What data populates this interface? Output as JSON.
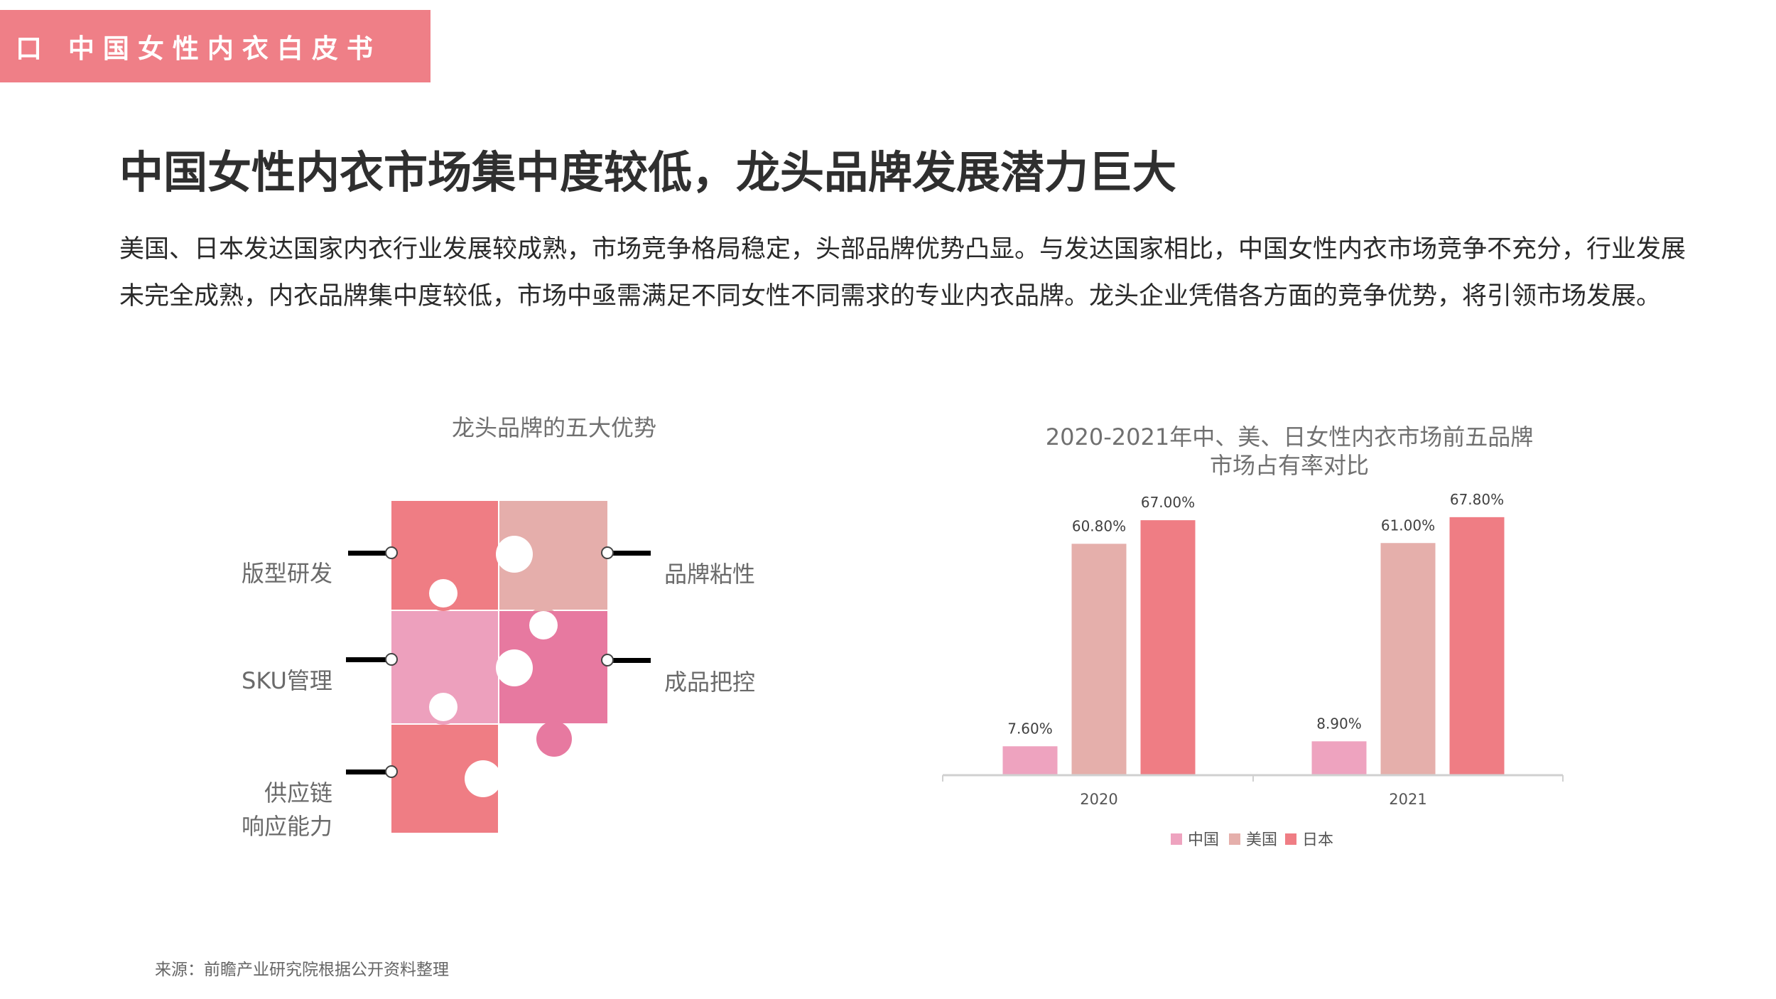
{
  "header": {
    "tab_label": "口 中国女性内衣白皮书"
  },
  "page": {
    "title": "中国女性内衣市场集中度较低，龙头品牌发展潜力巨大",
    "intro": "美国、日本发达国家内衣行业发展较成熟，市场竞争格局稳定，头部品牌优势凸显。与发达国家相比，中国女性内衣市场竞争不充分，行业发展未完全成熟，内衣品牌集中度较低，市场中亟需满足不同女性不同需求的专业内衣品牌。龙头企业凭借各方面的竞争优势，将引领市场发展。"
  },
  "puzzle": {
    "title": "龙头品牌的五大优势",
    "labels": {
      "left_1": "版型研发",
      "left_2": "SKU管理",
      "left_3_line1": "供应链",
      "left_3_line2": "响应能力",
      "right_1": "品牌粘性",
      "right_2": "成品把控"
    },
    "colors": {
      "piece_top_left": "#ef7d84",
      "piece_top_right": "#e5aeab",
      "piece_mid_left": "#eda0bd",
      "piece_mid_right": "#e779a0",
      "piece_bottom_left": "#ef7d84"
    }
  },
  "chart_data": {
    "type": "bar",
    "title_line1": "2020-2021年中、美、日女性内衣市场前五品牌",
    "title_line2": "市场占有率对比",
    "categories": [
      "2020",
      "2021"
    ],
    "series": [
      {
        "name": "中国",
        "values": [
          7.6,
          8.9
        ],
        "labels": [
          "7.60%",
          "8.90%"
        ],
        "color": "#eea3bf"
      },
      {
        "name": "美国",
        "values": [
          60.8,
          61.0
        ],
        "labels": [
          "60.80%",
          "61.00%"
        ],
        "color": "#e5afab"
      },
      {
        "name": "日本",
        "values": [
          67.0,
          67.8
        ],
        "labels": [
          "67.00%",
          "67.80%"
        ],
        "color": "#ef7d84"
      }
    ],
    "ylim": [
      0,
      73
    ],
    "grid": false,
    "legend_position": "bottom"
  },
  "footer": {
    "source": "来源：前瞻产业研究院根据公开资料整理"
  }
}
